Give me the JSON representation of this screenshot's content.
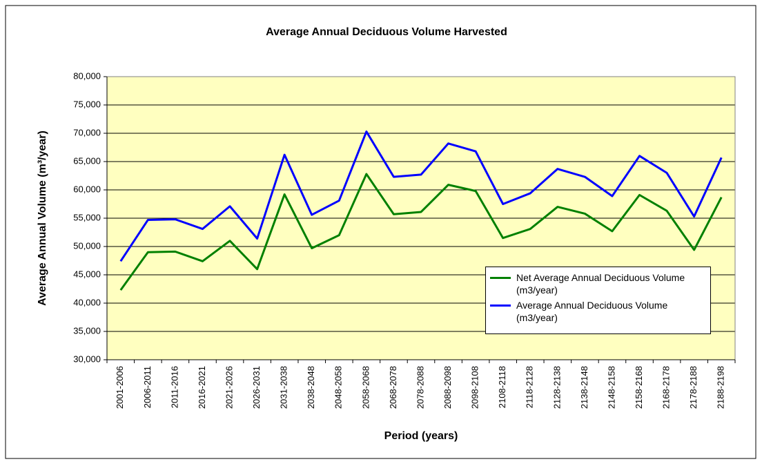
{
  "chart_data": {
    "type": "line",
    "title": "Average Annual Deciduous Volume Harvested",
    "x_label": "Period (years)",
    "y_label": "Average Annual Volume (m³/year)",
    "categories": [
      "2001-2006",
      "2006-2011",
      "2011-2016",
      "2016-2021",
      "2021-2026",
      "2026-2031",
      "2031-2038",
      "2038-2048",
      "2048-2058",
      "2058-2068",
      "2068-2078",
      "2078-2088",
      "2088-2098",
      "2098-2108",
      "2108-2118",
      "2118-2128",
      "2128-2138",
      "2138-2148",
      "2148-2158",
      "2158-2168",
      "2168-2178",
      "2178-2188",
      "2188-2198"
    ],
    "series": [
      {
        "name": "Net Average Annual Deciduous Volume (m3/year)",
        "color": "#008000",
        "values": [
          42300,
          49000,
          49100,
          47400,
          51000,
          46000,
          59200,
          49700,
          52000,
          62800,
          55700,
          56100,
          60900,
          59800,
          51500,
          53100,
          57000,
          55800,
          52700,
          59100,
          56300,
          49400,
          58700
        ]
      },
      {
        "name": "Average Annual Deciduous Volume (m3/year)",
        "color": "#0000ff",
        "values": [
          47400,
          54700,
          54800,
          53100,
          57100,
          51400,
          66200,
          55600,
          58100,
          70300,
          62300,
          62700,
          68200,
          66800,
          57500,
          59400,
          63700,
          62300,
          58900,
          66000,
          63000,
          55300,
          65700
        ]
      }
    ],
    "ylim": [
      30000,
      80000
    ],
    "yticks": [
      {
        "value": 30000,
        "label": "30,000"
      },
      {
        "value": 35000,
        "label": "35,000"
      },
      {
        "value": 40000,
        "label": "40,000"
      },
      {
        "value": 45000,
        "label": "45,000"
      },
      {
        "value": 50000,
        "label": "50,000"
      },
      {
        "value": 55000,
        "label": "55,000"
      },
      {
        "value": 60000,
        "label": "60,000"
      },
      {
        "value": 65000,
        "label": "65,000"
      },
      {
        "value": 70000,
        "label": "70,000"
      },
      {
        "value": 75000,
        "label": "75,000"
      },
      {
        "value": 80000,
        "label": "80,000"
      }
    ],
    "grid": true,
    "plot_background": "#ffffc0"
  }
}
